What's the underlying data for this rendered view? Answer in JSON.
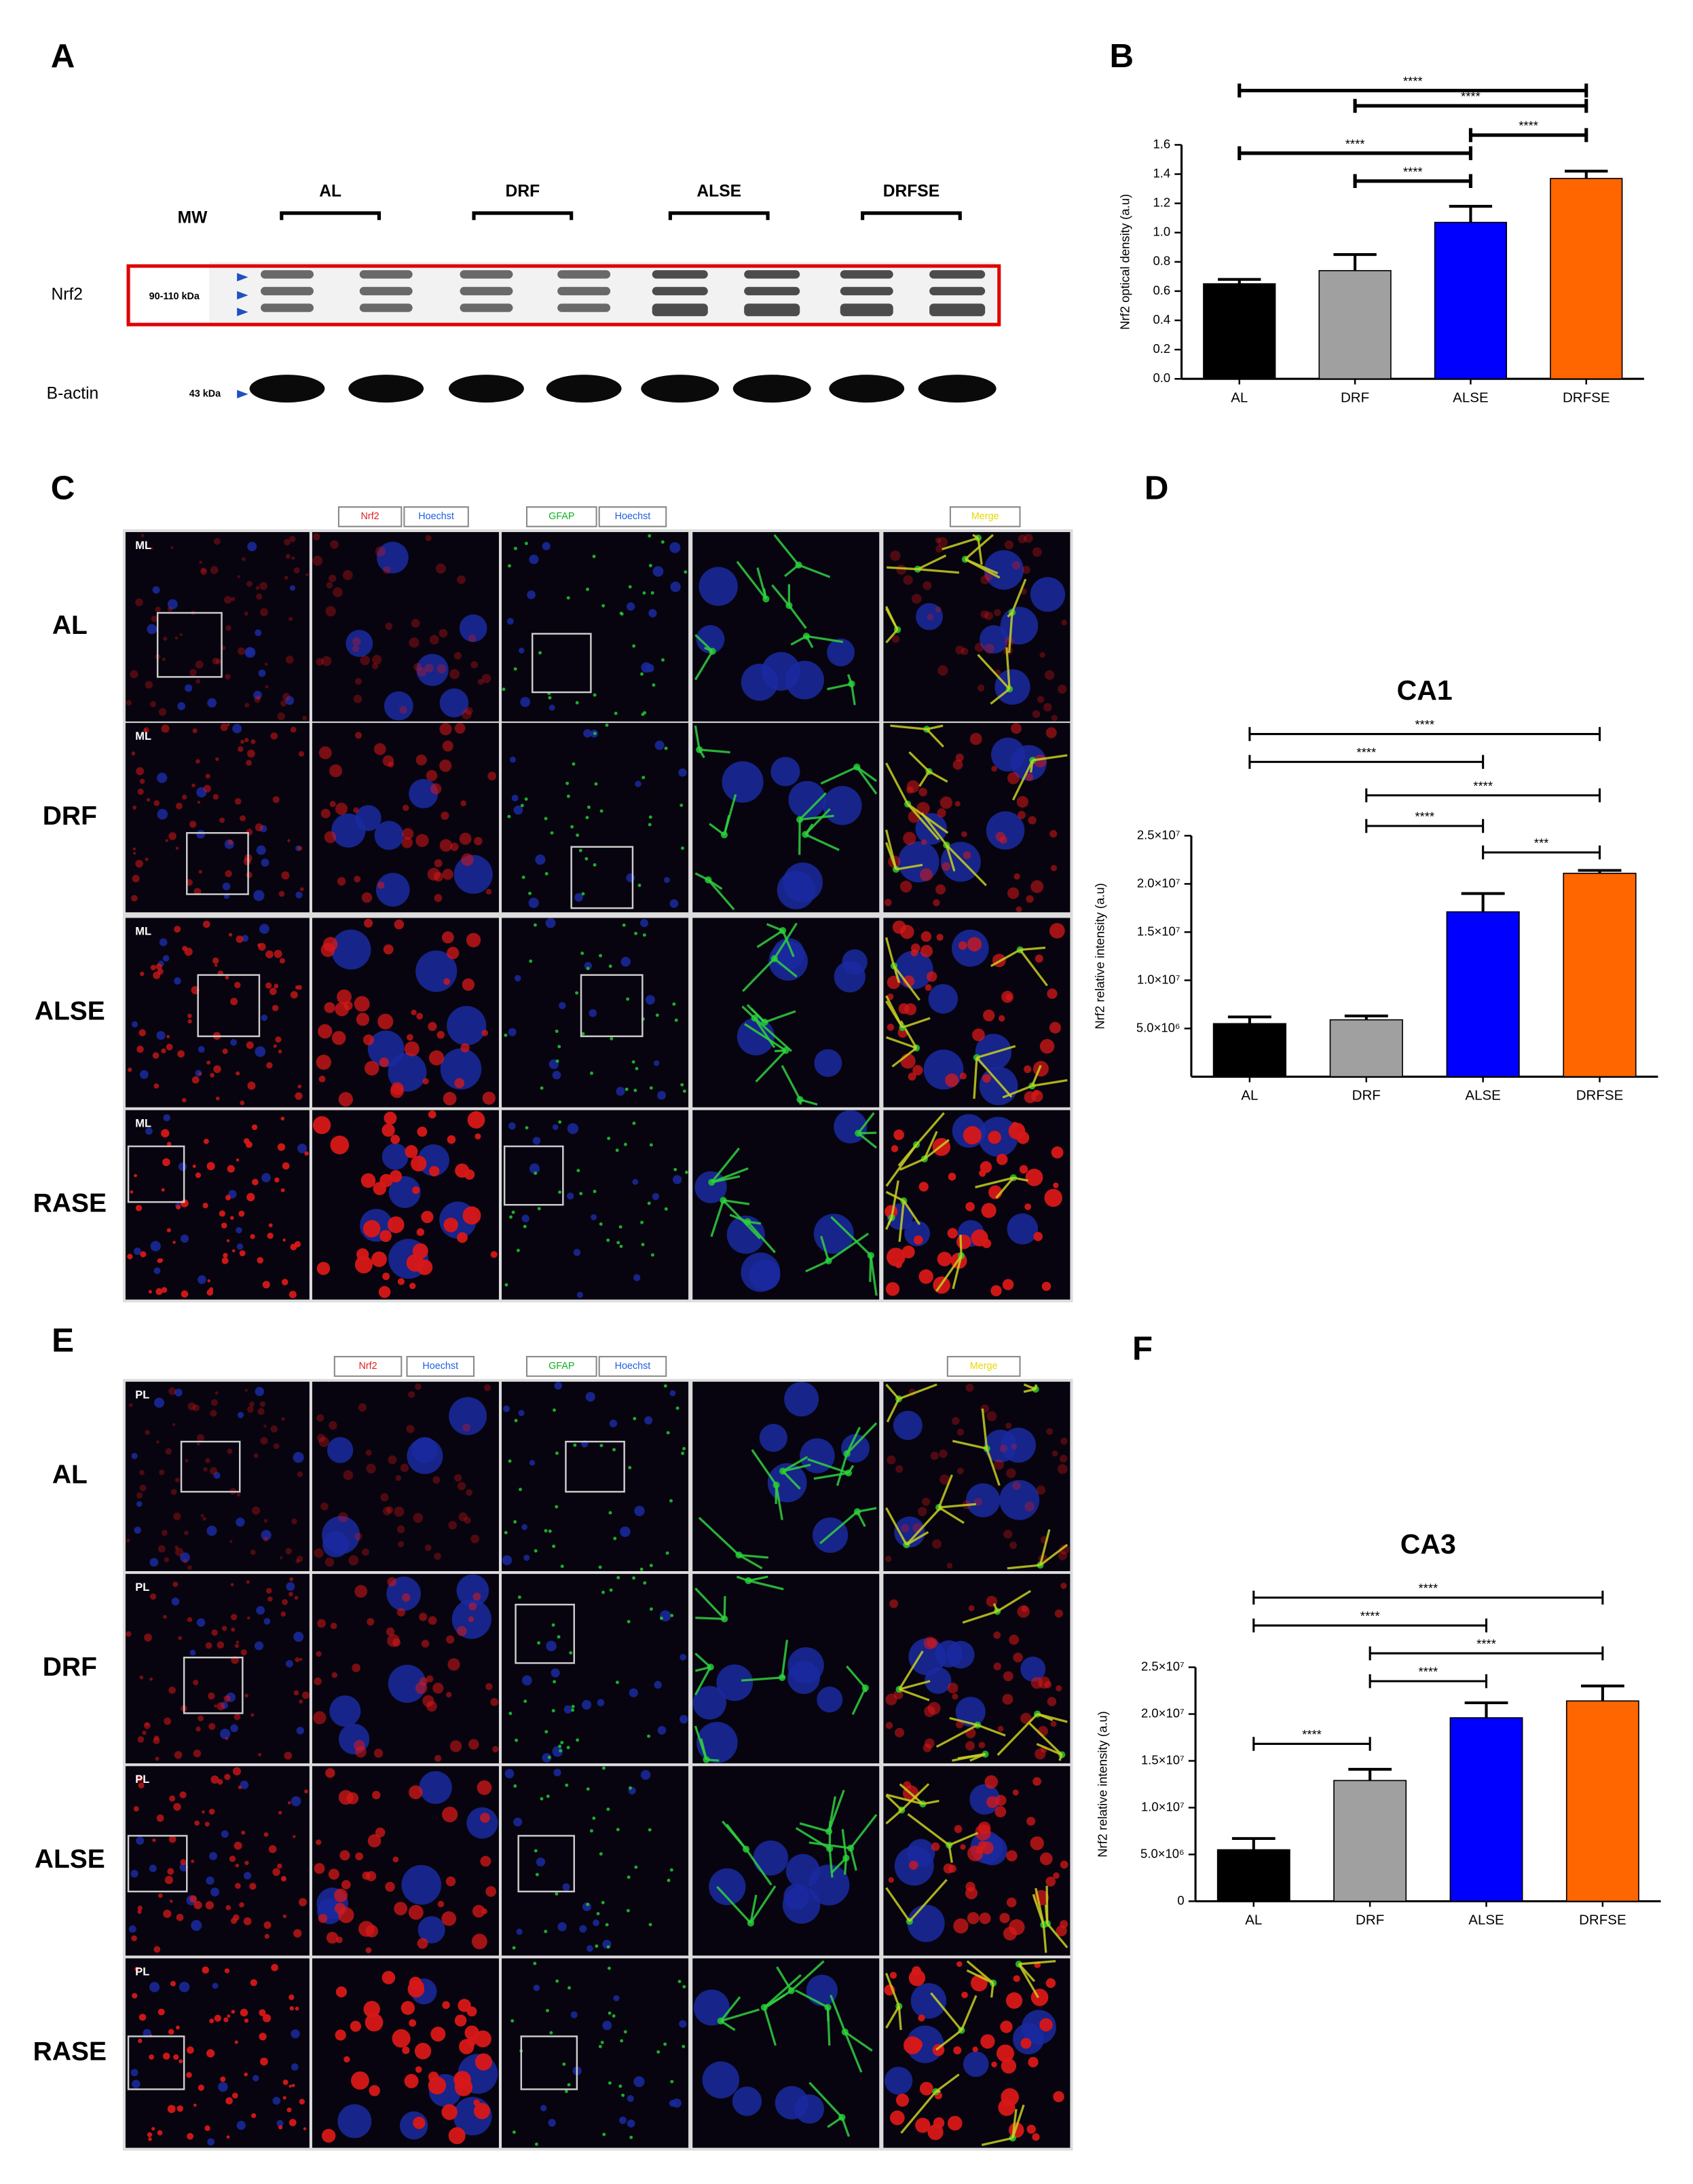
{
  "panel_labels": [
    "A",
    "B",
    "C",
    "D",
    "E",
    "F"
  ],
  "blot": {
    "mw": "MW",
    "groups": [
      "AL",
      "DRF",
      "ALSE",
      "DRFSE"
    ],
    "bands": [
      {
        "name": "Nrf2",
        "size": "90-110 kDa"
      },
      {
        "name": "B-actin",
        "size": "43 kDa"
      }
    ]
  },
  "chart_data": [
    {
      "type": "bar",
      "y_label": "Nrf2 optical density (a.u)",
      "categories": [
        "AL",
        "DRF",
        "ALSE",
        "DRFSE"
      ],
      "values": [
        0.65,
        0.74,
        1.07,
        1.37
      ],
      "errors": [
        0.03,
        0.11,
        0.11,
        0.05
      ],
      "colors": [
        "#000000",
        "#a0a0a0",
        "#0000ff",
        "#ff6600"
      ],
      "ylim": [
        0,
        1.6
      ],
      "yticks": [
        {
          "value": 0,
          "label": "0.0"
        },
        0.2,
        0.4,
        0.6,
        0.8,
        {
          "value": 1,
          "label": "1.0"
        },
        1.2,
        1.4,
        1.6
      ],
      "grid": false,
      "comparisons": [
        {
          "groups": [
            "AL",
            "DRFSE"
          ],
          "label": "****"
        },
        {
          "groups": [
            "DRF",
            "DRFSE"
          ],
          "label": "****"
        },
        {
          "groups": [
            "ALSE",
            "DRFSE"
          ],
          "label": "****"
        },
        {
          "groups": [
            "AL",
            "ALSE"
          ],
          "label": "****"
        },
        {
          "groups": [
            "DRF",
            "ALSE"
          ],
          "label": "****"
        }
      ]
    },
    {
      "type": "bar",
      "title": "CA1",
      "y_label": "Nrf2 relative intensity (a.u)",
      "categories": [
        "AL",
        "DRF",
        "ALSE",
        "DRFSE"
      ],
      "values": [
        5500000,
        5900000,
        17100000,
        21100000
      ],
      "errors": [
        700000,
        400000,
        1900000,
        300000
      ],
      "colors": [
        "#000000",
        "#a0a0a0",
        "#0000ff",
        "#ff6600"
      ],
      "ylim": [
        0,
        25000000
      ],
      "yticks": [
        {
          "value": 5000000,
          "label": "5.0×10⁶"
        },
        {
          "value": 10000000,
          "label": "1.0×10⁷"
        },
        {
          "value": 15000000,
          "label": "1.5×10⁷"
        },
        {
          "value": 20000000,
          "label": "2.0×10⁷"
        },
        {
          "value": 25000000,
          "label": "2.5×10⁷"
        }
      ],
      "grid": false,
      "comparisons": [
        {
          "groups": [
            "AL",
            "DRFSE"
          ],
          "label": "****"
        },
        {
          "groups": [
            "AL",
            "ALSE"
          ],
          "label": "****"
        },
        {
          "groups": [
            "DRF",
            "DRFSE"
          ],
          "label": "****"
        },
        {
          "groups": [
            "DRF",
            "ALSE"
          ],
          "label": "****"
        },
        {
          "groups": [
            "ALSE",
            "DRFSE"
          ],
          "label": "***"
        }
      ]
    },
    {
      "type": "bar",
      "title": "CA3",
      "y_label": "Nrf2 relative intensity (a.u)",
      "categories": [
        "AL",
        "DRF",
        "ALSE",
        "DRFSE"
      ],
      "values": [
        5500000,
        12900000,
        19600000,
        21400000
      ],
      "errors": [
        1200000,
        1200000,
        1600000,
        1600000
      ],
      "colors": [
        "#000000",
        "#a0a0a0",
        "#0000ff",
        "#ff6600"
      ],
      "ylim": [
        0,
        25000000
      ],
      "yticks": [
        0,
        {
          "value": 5000000,
          "label": "5.0×10⁶"
        },
        {
          "value": 10000000,
          "label": "1.0×10⁷"
        },
        {
          "value": 15000000,
          "label": "1.5×10⁷"
        },
        {
          "value": 20000000,
          "label": "2.0×10⁷"
        },
        {
          "value": 25000000,
          "label": "2.5×10⁷"
        }
      ],
      "grid": false,
      "comparisons": [
        {
          "groups": [
            "AL",
            "DRFSE"
          ],
          "label": "****"
        },
        {
          "groups": [
            "AL",
            "ALSE"
          ],
          "label": "****"
        },
        {
          "groups": [
            "DRF",
            "DRFSE"
          ],
          "label": "****"
        },
        {
          "groups": [
            "DRF",
            "ALSE"
          ],
          "label": "****"
        },
        {
          "groups": [
            "AL",
            "DRF"
          ],
          "label": "****"
        }
      ]
    }
  ],
  "micrographs": [
    {
      "region": "ML",
      "rows": [
        "AL",
        "DRF",
        "ALSE",
        "RASE"
      ],
      "legend": [
        {
          "text": "Nrf2",
          "color": "#e02020"
        },
        {
          "text": "Hoechst",
          "color": "#2060e0"
        },
        {
          "text": "GFAP",
          "color": "#10b020"
        },
        {
          "text": "Hoechst",
          "color": "#2060e0"
        },
        {
          "text": "Merge",
          "color": "#e8d800"
        }
      ]
    },
    {
      "region": "PL",
      "rows": [
        "AL",
        "DRF",
        "ALSE",
        "RASE"
      ],
      "legend": [
        {
          "text": "Nrf2",
          "color": "#e02020"
        },
        {
          "text": "Hoechst",
          "color": "#2060e0"
        },
        {
          "text": "GFAP",
          "color": "#10b020"
        },
        {
          "text": "Hoechst",
          "color": "#2060e0"
        },
        {
          "text": "Merge",
          "color": "#e8d800"
        }
      ]
    }
  ]
}
